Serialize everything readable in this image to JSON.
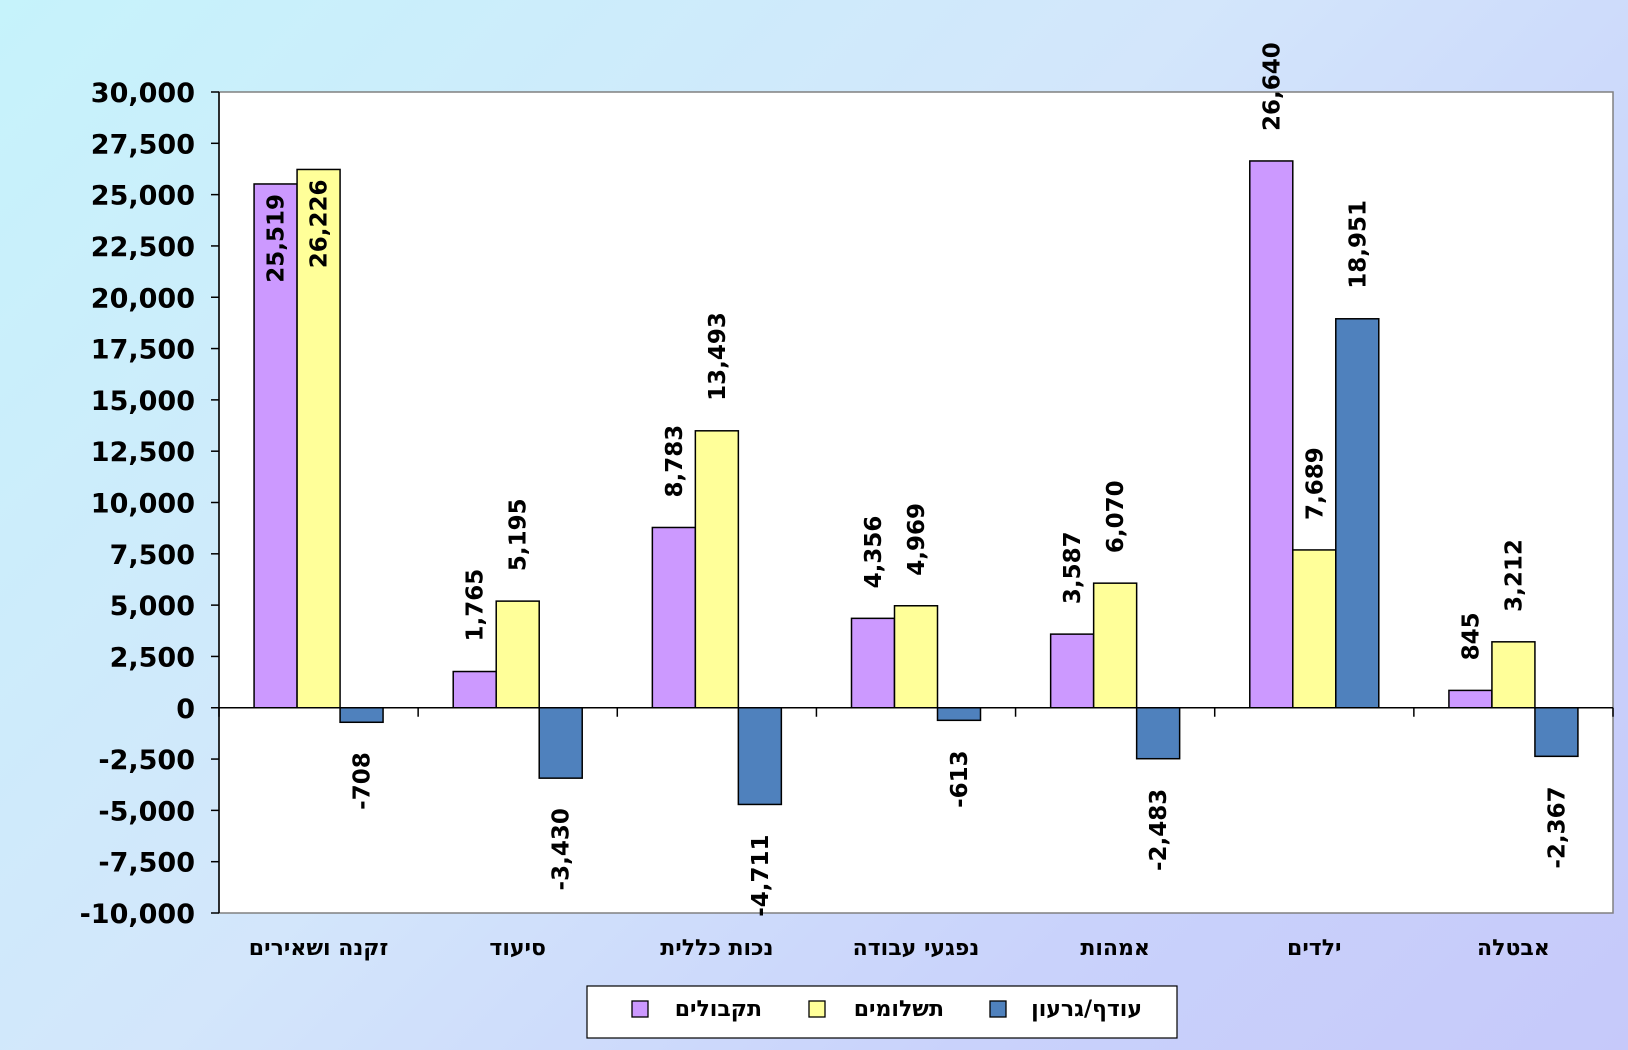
{
  "chart_data": {
    "type": "bar",
    "title": "",
    "xlabel": "",
    "ylabel": "",
    "ylim": [
      -10000,
      30000
    ],
    "ytick_step": 2500,
    "yticks": [
      "30,000",
      "27,500",
      "25,000",
      "22,500",
      "20,000",
      "17,500",
      "15,000",
      "12,500",
      "10,000",
      "7,500",
      "5,000",
      "2,500",
      "0",
      "-2,500",
      "-5,000",
      "-7,500",
      "-10,000"
    ],
    "categories": [
      "זקנה ושאירים",
      "סיעוד",
      "נכות כללית",
      "נפגעי עבודה",
      "אמהות",
      "ילדים",
      "אבטלה"
    ],
    "series": [
      {
        "name": "תקבולים",
        "color": "#cc99ff",
        "values": [
          25519,
          1765,
          8783,
          4356,
          3587,
          26640,
          845
        ],
        "labels": [
          "25,519",
          "1,765",
          "8,783",
          "4,356",
          "3,587",
          "26,640",
          "845"
        ]
      },
      {
        "name": "תשלומים",
        "color": "#ffff99",
        "values": [
          26226,
          5195,
          13493,
          4969,
          6070,
          7689,
          3212
        ],
        "labels": [
          "26,226",
          "5,195",
          "13,493",
          "4,969",
          "6,070",
          "7,689",
          "3,212"
        ]
      },
      {
        "name": "עודף/גרעון",
        "color": "#4f81bd",
        "values": [
          -708,
          -3430,
          -4711,
          -613,
          -2483,
          18951,
          -2367
        ],
        "labels": [
          "-708",
          "-3,430",
          "-4,711",
          "-613",
          "-2,483",
          "18,951",
          "-2,367"
        ]
      }
    ],
    "legend": "bottom",
    "grid": false
  }
}
